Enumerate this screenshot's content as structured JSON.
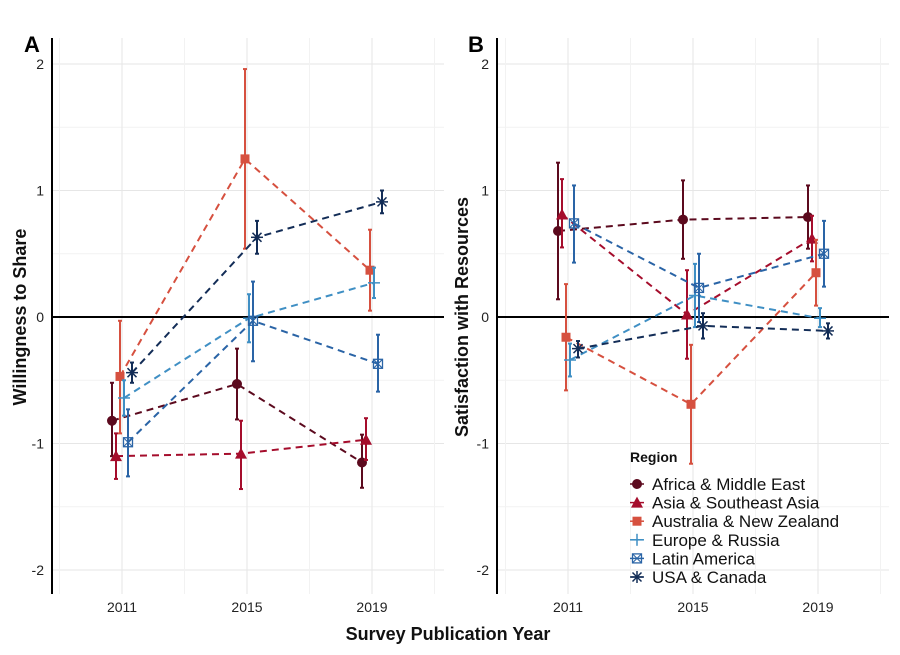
{
  "x_axis_title": "Survey Publication Year",
  "legend": {
    "title": "Region",
    "items": [
      {
        "label": "Africa & Middle East",
        "color": "#5c0a1e",
        "marker": "circle"
      },
      {
        "label": "Asia & Southeast Asia",
        "color": "#a50d2c",
        "marker": "triangle"
      },
      {
        "label": "Australia & New Zealand",
        "color": "#d6503f",
        "marker": "square"
      },
      {
        "label": "Europe & Russia",
        "color": "#3f8fc4",
        "marker": "plus"
      },
      {
        "label": "Latin America",
        "color": "#2a64a6",
        "marker": "square-cross"
      },
      {
        "label": "USA & Canada",
        "color": "#132d57",
        "marker": "asterisk"
      }
    ]
  },
  "chart_data": [
    {
      "panel_label": "A",
      "type": "line",
      "ylabel": "Willingness to Share",
      "xlabel": "Survey Publication Year",
      "categories": [
        "2011",
        "2015",
        "2019"
      ],
      "ylim": [
        -2.2,
        2.2
      ],
      "yticks": [
        -2,
        -1,
        0,
        1,
        2
      ],
      "grid": true,
      "series": [
        {
          "name": "Africa & Middle East",
          "values": [
            -0.82,
            -0.53,
            -1.15
          ],
          "lower": [
            -1.1,
            -0.81,
            -1.35
          ],
          "upper": [
            -0.52,
            -0.25,
            -0.93
          ]
        },
        {
          "name": "Asia & Southeast Asia",
          "values": [
            -1.1,
            -1.08,
            -0.97
          ],
          "lower": [
            -1.28,
            -1.36,
            -1.13
          ],
          "upper": [
            -0.92,
            -0.82,
            -0.8
          ]
        },
        {
          "name": "Australia & New Zealand",
          "values": [
            -0.47,
            1.25,
            0.37
          ],
          "lower": [
            -0.92,
            0.54,
            0.05
          ],
          "upper": [
            -0.03,
            1.96,
            0.69
          ]
        },
        {
          "name": "Europe & Russia",
          "values": [
            -0.64,
            -0.01,
            0.27
          ],
          "lower": [
            -0.78,
            -0.2,
            0.15
          ],
          "upper": [
            -0.5,
            0.18,
            0.39
          ]
        },
        {
          "name": "Latin America",
          "values": [
            -0.99,
            -0.03,
            -0.37
          ],
          "lower": [
            -1.26,
            -0.35,
            -0.59
          ],
          "upper": [
            -0.73,
            0.28,
            -0.14
          ]
        },
        {
          "name": "USA & Canada",
          "values": [
            -0.44,
            0.63,
            0.91
          ],
          "lower": [
            -0.52,
            0.5,
            0.82
          ],
          "upper": [
            -0.36,
            0.76,
            1.0
          ]
        }
      ]
    },
    {
      "panel_label": "B",
      "type": "line",
      "ylabel": "Satisfaction with Resources",
      "xlabel": "Survey Publication Year",
      "categories": [
        "2011",
        "2015",
        "2019"
      ],
      "ylim": [
        -2.2,
        2.2
      ],
      "yticks": [
        -2,
        -1,
        0,
        1,
        2
      ],
      "grid": true,
      "series": [
        {
          "name": "Africa & Middle East",
          "values": [
            0.68,
            0.77,
            0.79
          ],
          "lower": [
            0.14,
            0.46,
            0.54
          ],
          "upper": [
            1.22,
            1.08,
            1.04
          ]
        },
        {
          "name": "Asia & Southeast Asia",
          "values": [
            0.81,
            0.02,
            0.62
          ],
          "lower": [
            0.55,
            -0.33,
            0.44
          ],
          "upper": [
            1.09,
            0.37,
            0.8
          ]
        },
        {
          "name": "Australia & New Zealand",
          "values": [
            -0.16,
            -0.69,
            0.35
          ],
          "lower": [
            -0.58,
            -1.16,
            0.09
          ],
          "upper": [
            0.26,
            -0.22,
            0.61
          ]
        },
        {
          "name": "Europe & Russia",
          "values": [
            -0.34,
            0.17,
            -0.01
          ],
          "lower": [
            -0.47,
            -0.08,
            -0.08
          ],
          "upper": [
            -0.21,
            0.42,
            0.07
          ]
        },
        {
          "name": "Latin America",
          "values": [
            0.74,
            0.23,
            0.5
          ],
          "lower": [
            0.43,
            -0.04,
            0.24
          ],
          "upper": [
            1.04,
            0.5,
            0.76
          ]
        },
        {
          "name": "USA & Canada",
          "values": [
            -0.25,
            -0.07,
            -0.11
          ],
          "lower": [
            -0.32,
            -0.17,
            -0.17
          ],
          "upper": [
            -0.19,
            0.03,
            -0.05
          ]
        }
      ]
    }
  ]
}
